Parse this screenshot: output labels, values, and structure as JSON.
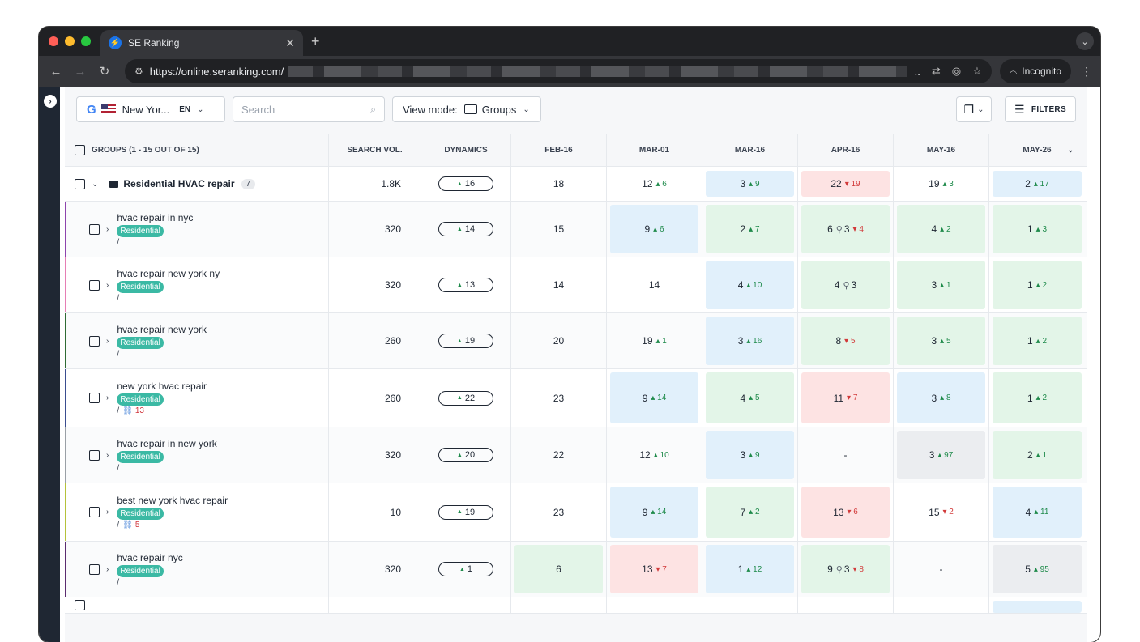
{
  "browser": {
    "tab_title": "SE Ranking",
    "url": "https://online.seranking.com/",
    "incognito_label": "Incognito"
  },
  "filterbar": {
    "location": "New Yor...",
    "language": "EN",
    "search_placeholder": "Search",
    "view_mode_label": "View mode:",
    "view_mode_value": "Groups",
    "filters_label": "FILTERS"
  },
  "table": {
    "headers": {
      "keyword": "GROUPS (1 - 15 OUT OF 15)",
      "volume": "SEARCH VOL.",
      "dynamics": "DYNAMICS",
      "dates": [
        "FEB-16",
        "MAR-01",
        "MAR-16",
        "APR-16",
        "MAY-16",
        "MAY-26"
      ]
    },
    "group": {
      "name": "Residential HVAC repair",
      "count": "7",
      "volume": "1.8K",
      "dynamics": "16",
      "cells": [
        {
          "pos": "18",
          "change": "",
          "dir": "",
          "bg": ""
        },
        {
          "pos": "12",
          "change": "6",
          "dir": "up",
          "bg": ""
        },
        {
          "pos": "3",
          "change": "9",
          "dir": "up",
          "bg": "blue"
        },
        {
          "pos": "22",
          "change": "19",
          "dir": "down",
          "bg": "red"
        },
        {
          "pos": "19",
          "change": "3",
          "dir": "up",
          "bg": ""
        },
        {
          "pos": "2",
          "change": "17",
          "dir": "up",
          "bg": "blue"
        }
      ]
    },
    "rows": [
      {
        "keyword": "hvac repair in nyc",
        "tag": "Residential",
        "url": "/",
        "backlinks": "",
        "volume": "320",
        "dynamics": "14",
        "color": "#8e44ad",
        "cells": [
          {
            "pos": "15",
            "change": "",
            "dir": "",
            "bg": "",
            "local": ""
          },
          {
            "pos": "9",
            "change": "6",
            "dir": "up",
            "bg": "blue",
            "local": ""
          },
          {
            "pos": "2",
            "change": "7",
            "dir": "up",
            "bg": "green",
            "local": ""
          },
          {
            "pos": "6",
            "change": "4",
            "dir": "down",
            "bg": "green",
            "local": "3"
          },
          {
            "pos": "4",
            "change": "2",
            "dir": "up",
            "bg": "green",
            "local": ""
          },
          {
            "pos": "1",
            "change": "3",
            "dir": "up",
            "bg": "green",
            "local": ""
          }
        ]
      },
      {
        "keyword": "hvac repair new york ny",
        "tag": "Residential",
        "url": "/",
        "backlinks": "",
        "volume": "320",
        "dynamics": "13",
        "color": "#e67eb5",
        "cells": [
          {
            "pos": "14",
            "change": "",
            "dir": "",
            "bg": "",
            "local": ""
          },
          {
            "pos": "14",
            "change": "",
            "dir": "",
            "bg": "",
            "local": ""
          },
          {
            "pos": "4",
            "change": "10",
            "dir": "up",
            "bg": "blue",
            "local": ""
          },
          {
            "pos": "4",
            "change": "",
            "dir": "",
            "bg": "green",
            "local": "3"
          },
          {
            "pos": "3",
            "change": "1",
            "dir": "up",
            "bg": "green",
            "local": ""
          },
          {
            "pos": "1",
            "change": "2",
            "dir": "up",
            "bg": "green",
            "local": ""
          }
        ]
      },
      {
        "keyword": "hvac repair new york",
        "tag": "Residential",
        "url": "/",
        "backlinks": "",
        "volume": "260",
        "dynamics": "19",
        "color": "#2f6b34",
        "cells": [
          {
            "pos": "20",
            "change": "",
            "dir": "",
            "bg": "",
            "local": ""
          },
          {
            "pos": "19",
            "change": "1",
            "dir": "up",
            "bg": "",
            "local": ""
          },
          {
            "pos": "3",
            "change": "16",
            "dir": "up",
            "bg": "blue",
            "local": ""
          },
          {
            "pos": "8",
            "change": "5",
            "dir": "down",
            "bg": "green",
            "local": ""
          },
          {
            "pos": "3",
            "change": "5",
            "dir": "up",
            "bg": "green",
            "local": ""
          },
          {
            "pos": "1",
            "change": "2",
            "dir": "up",
            "bg": "green",
            "local": ""
          }
        ]
      },
      {
        "keyword": "new york hvac repair",
        "tag": "Residential",
        "url": "/",
        "backlinks": "13",
        "volume": "260",
        "dynamics": "22",
        "color": "#3a4d8f",
        "cells": [
          {
            "pos": "23",
            "change": "",
            "dir": "",
            "bg": "",
            "local": ""
          },
          {
            "pos": "9",
            "change": "14",
            "dir": "up",
            "bg": "blue",
            "local": ""
          },
          {
            "pos": "4",
            "change": "5",
            "dir": "up",
            "bg": "green",
            "local": ""
          },
          {
            "pos": "11",
            "change": "7",
            "dir": "down",
            "bg": "red",
            "local": ""
          },
          {
            "pos": "3",
            "change": "8",
            "dir": "up",
            "bg": "blue",
            "local": ""
          },
          {
            "pos": "1",
            "change": "2",
            "dir": "up",
            "bg": "green",
            "local": ""
          }
        ]
      },
      {
        "keyword": "hvac repair in new york",
        "tag": "Residential",
        "url": "/",
        "backlinks": "",
        "volume": "320",
        "dynamics": "20",
        "color": "#9aa0a6",
        "cells": [
          {
            "pos": "22",
            "change": "",
            "dir": "",
            "bg": "",
            "local": ""
          },
          {
            "pos": "12",
            "change": "10",
            "dir": "up",
            "bg": "",
            "local": ""
          },
          {
            "pos": "3",
            "change": "9",
            "dir": "up",
            "bg": "blue",
            "local": ""
          },
          {
            "pos": "-",
            "change": "",
            "dir": "",
            "bg": "",
            "local": ""
          },
          {
            "pos": "3",
            "change": "97",
            "dir": "up",
            "bg": "grey",
            "local": ""
          },
          {
            "pos": "2",
            "change": "1",
            "dir": "up",
            "bg": "green",
            "local": ""
          }
        ]
      },
      {
        "keyword": "best new york hvac repair",
        "tag": "Residential",
        "url": "/",
        "backlinks": "5",
        "volume": "10",
        "dynamics": "19",
        "color": "#b5c23a",
        "cells": [
          {
            "pos": "23",
            "change": "",
            "dir": "",
            "bg": "",
            "local": ""
          },
          {
            "pos": "9",
            "change": "14",
            "dir": "up",
            "bg": "blue",
            "local": ""
          },
          {
            "pos": "7",
            "change": "2",
            "dir": "up",
            "bg": "green",
            "local": ""
          },
          {
            "pos": "13",
            "change": "6",
            "dir": "down",
            "bg": "red",
            "local": ""
          },
          {
            "pos": "15",
            "change": "2",
            "dir": "down",
            "bg": "",
            "local": ""
          },
          {
            "pos": "4",
            "change": "11",
            "dir": "up",
            "bg": "blue",
            "local": ""
          }
        ]
      },
      {
        "keyword": "hvac repair nyc",
        "tag": "Residential",
        "url": "/",
        "backlinks": "",
        "volume": "320",
        "dynamics": "1",
        "color": "#5b2c6f",
        "cells": [
          {
            "pos": "6",
            "change": "",
            "dir": "",
            "bg": "green",
            "local": ""
          },
          {
            "pos": "13",
            "change": "7",
            "dir": "down",
            "bg": "red",
            "local": ""
          },
          {
            "pos": "1",
            "change": "12",
            "dir": "up",
            "bg": "blue",
            "local": ""
          },
          {
            "pos": "9",
            "change": "8",
            "dir": "down",
            "bg": "green",
            "local": "3"
          },
          {
            "pos": "-",
            "change": "",
            "dir": "",
            "bg": "",
            "local": ""
          },
          {
            "pos": "5",
            "change": "95",
            "dir": "up",
            "bg": "grey",
            "local": ""
          }
        ]
      }
    ]
  }
}
